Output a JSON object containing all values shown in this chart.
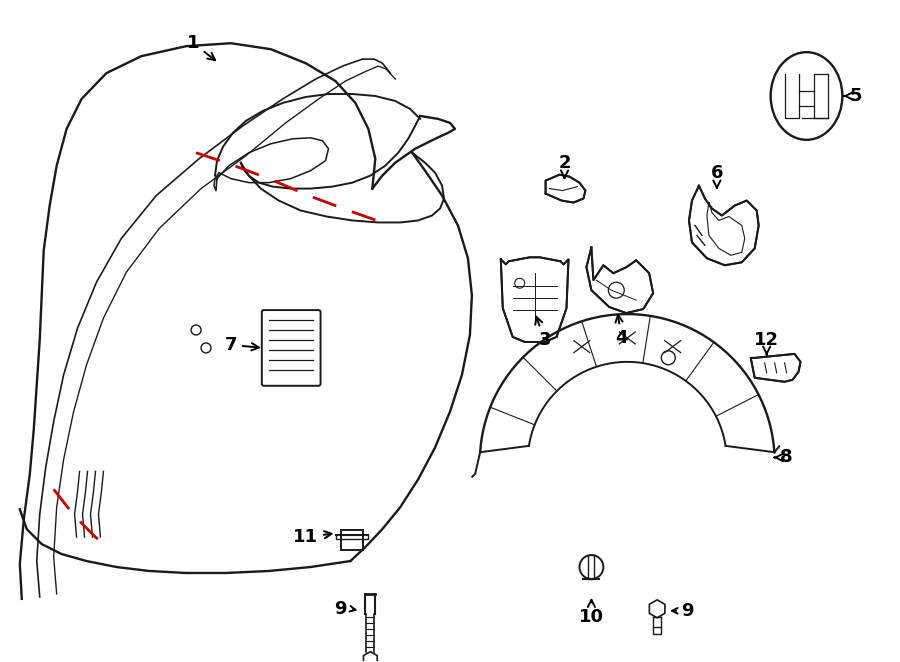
{
  "bg_color": "#ffffff",
  "line_color": "#1a1a1a",
  "red_dash_color": "#cc0000",
  "figsize": [
    9.0,
    6.62
  ],
  "dpi": 100
}
